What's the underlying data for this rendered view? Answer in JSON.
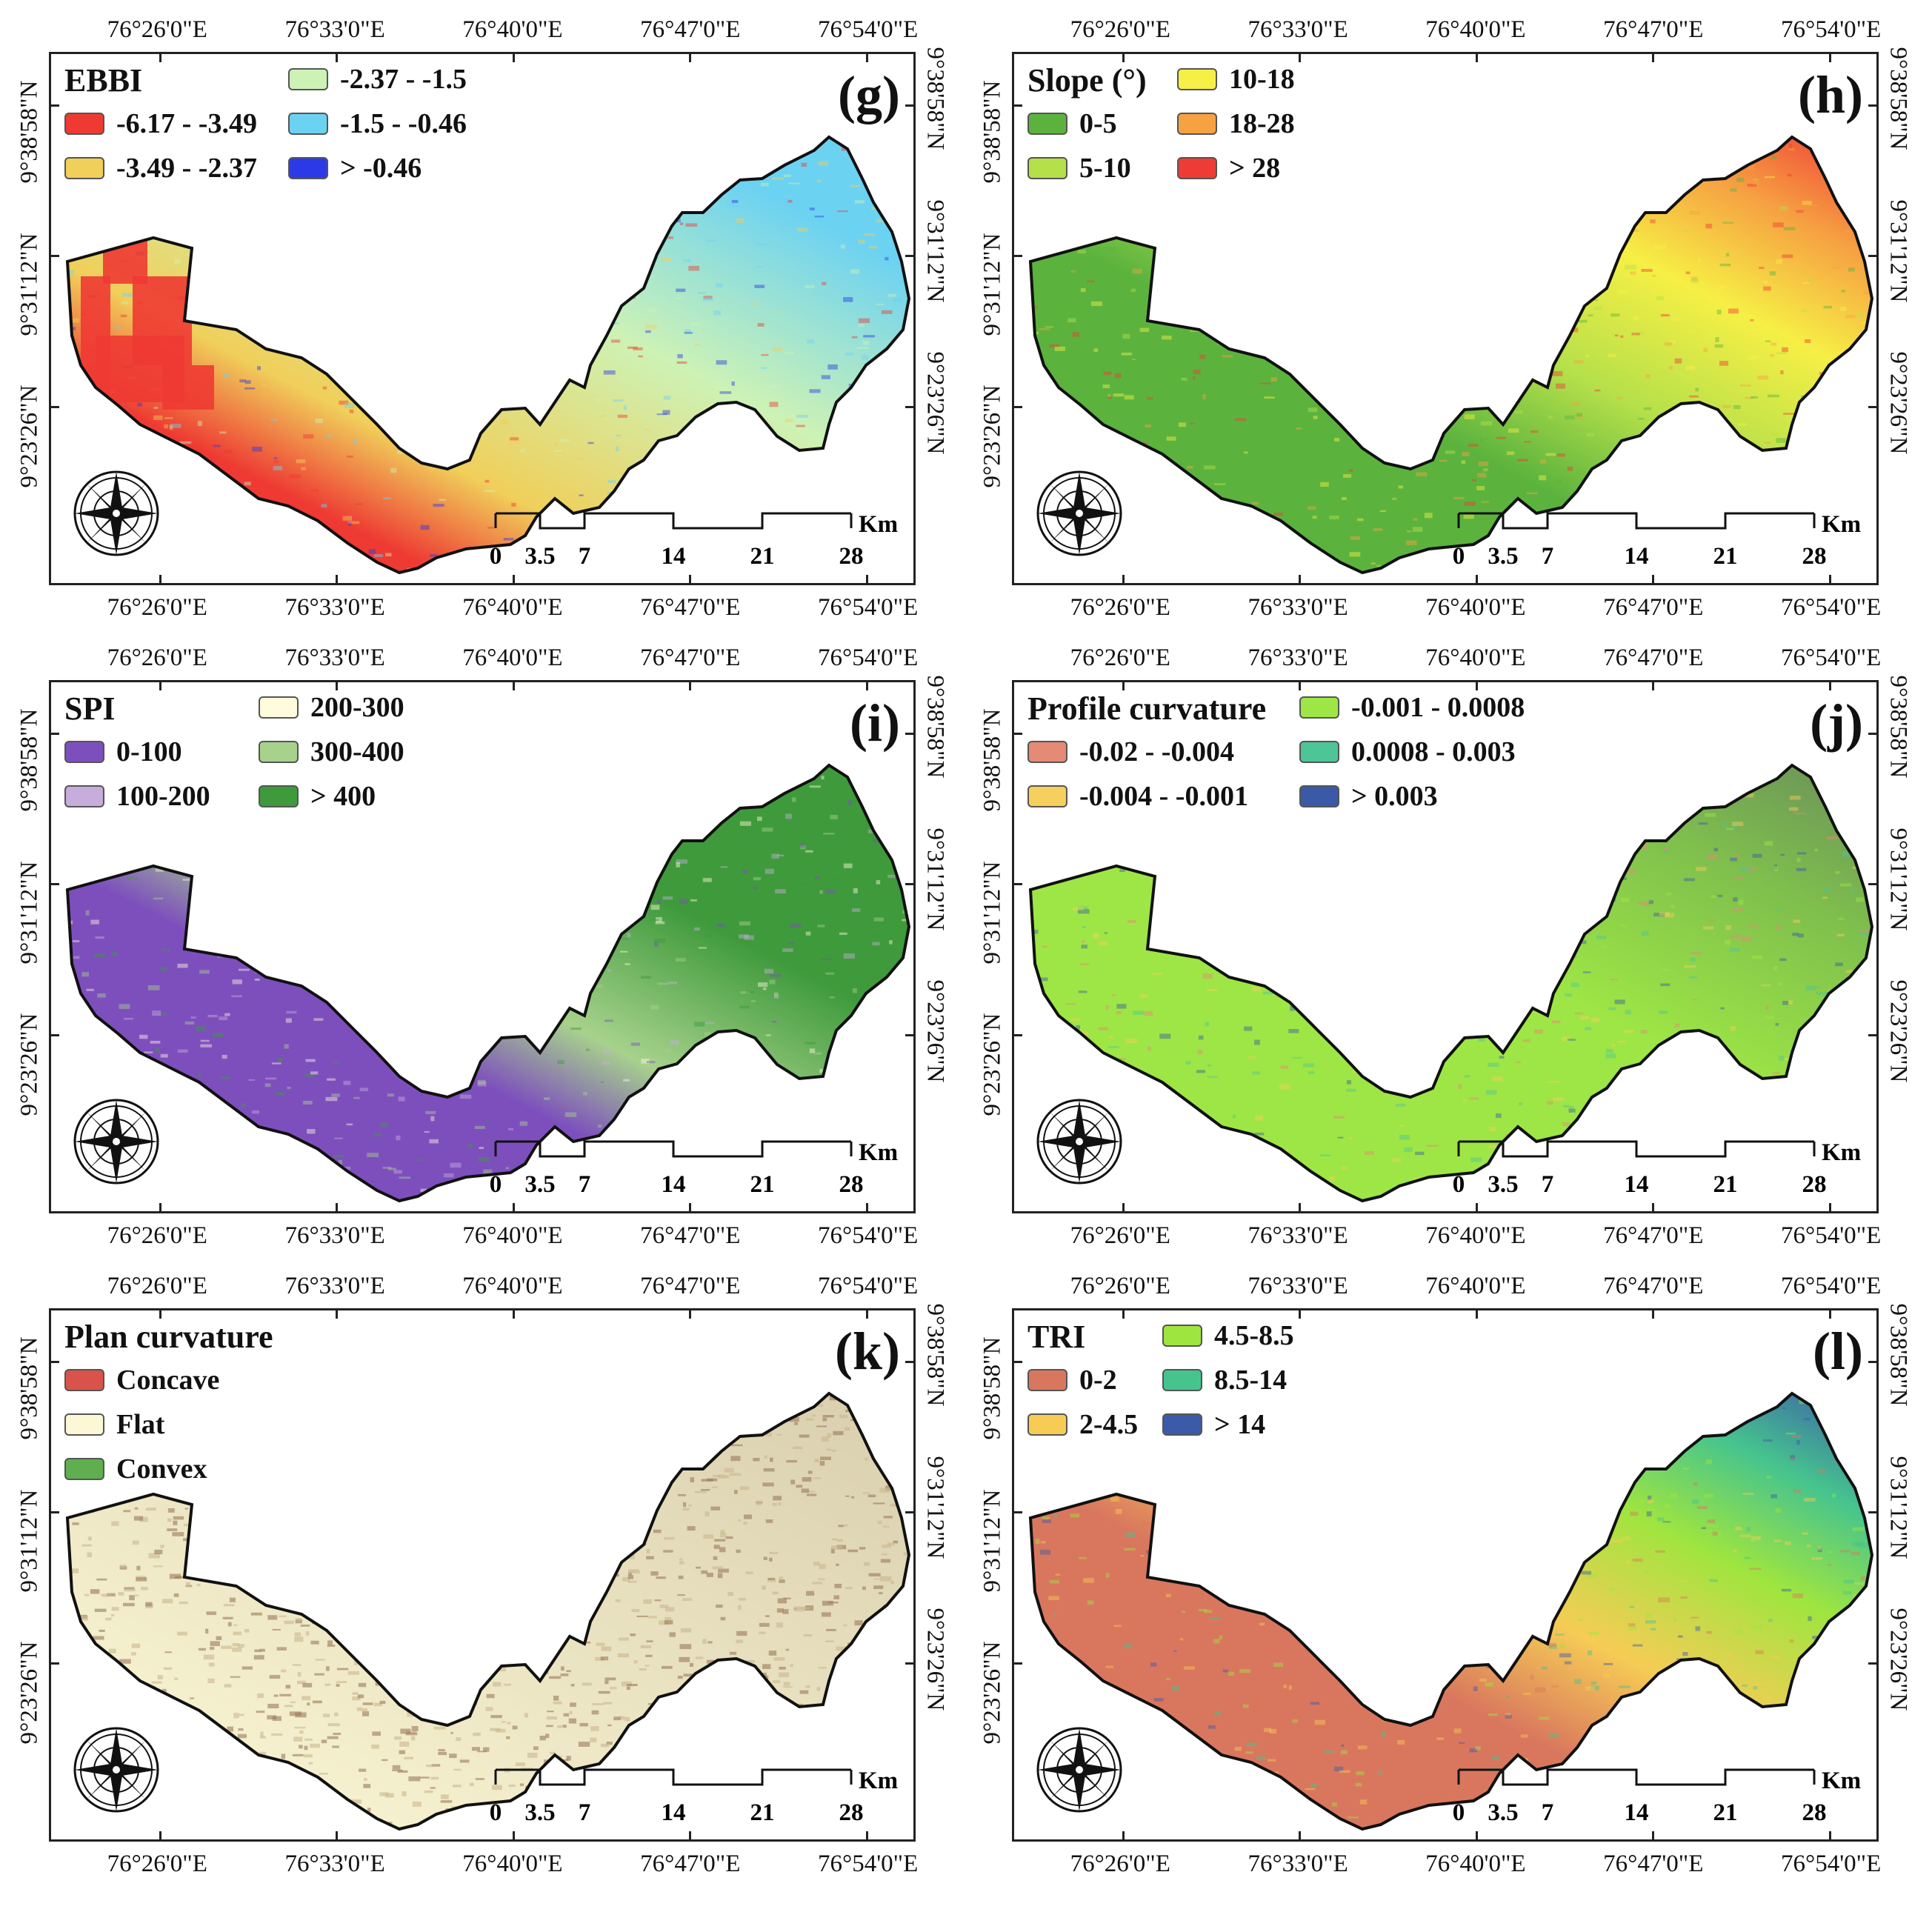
{
  "lon_ticks": [
    "76°26'0\"E",
    "76°33'0\"E",
    "76°40'0\"E",
    "76°47'0\"E",
    "76°54'0\"E"
  ],
  "lat_ticks": [
    "9°38'58\"N",
    "9°31'12\"N",
    "9°23'26\"N"
  ],
  "scalebar": {
    "unit": "Km",
    "labels": [
      "0",
      "3.5",
      "7",
      "14",
      "21",
      "28"
    ]
  },
  "panels": [
    {
      "id": "g",
      "label": "(g)",
      "legend_title": "EBBI",
      "texture": "ebbi",
      "classes": [
        {
          "label": "-6.17 - -3.49",
          "color": "#ee3a33"
        },
        {
          "label": "-3.49 - -2.37",
          "color": "#f0cf5a"
        },
        {
          "label": "-2.37 - -1.5",
          "color": "#cdf2b5"
        },
        {
          "label": "-1.5 - -0.46",
          "color": "#6cd2f2"
        },
        {
          "label": "> -0.46",
          "color": "#2b3ae6"
        }
      ]
    },
    {
      "id": "h",
      "label": "(h)",
      "legend_title": "Slope (°)",
      "texture": "gradient",
      "classes": [
        {
          "label": "0-5",
          "color": "#5bb33e"
        },
        {
          "label": "5-10",
          "color": "#b5e04a"
        },
        {
          "label": "10-18",
          "color": "#f6ef45"
        },
        {
          "label": "18-28",
          "color": "#f6a142"
        },
        {
          "label": "> 28",
          "color": "#ef3b35"
        }
      ]
    },
    {
      "id": "i",
      "label": "(i)",
      "legend_title": "SPI",
      "texture": "gradient",
      "classes": [
        {
          "label": "0-100",
          "color": "#7d4fbd"
        },
        {
          "label": "100-200",
          "color": "#c7addb"
        },
        {
          "label": "200-300",
          "color": "#fffbdc"
        },
        {
          "label": "300-400",
          "color": "#a7d28c"
        },
        {
          "label": "> 400",
          "color": "#3f9a3c"
        }
      ]
    },
    {
      "id": "j",
      "label": "(j)",
      "legend_title": "Profile curvature",
      "texture": "gradient",
      "classes": [
        {
          "label": "-0.02 - -0.004",
          "color": "#e48a76"
        },
        {
          "label": "-0.004 - -0.001",
          "color": "#f7cf5c"
        },
        {
          "label": "-0.001 - 0.0008",
          "color": "#9ee645"
        },
        {
          "label": "0.0008 - 0.003",
          "color": "#4dc596"
        },
        {
          "label": "> 0.003",
          "color": "#3a5aa8"
        }
      ]
    },
    {
      "id": "k",
      "label": "(k)",
      "legend_title": "Plan curvature",
      "texture": "speckle",
      "classes": [
        {
          "label": "Concave",
          "color": "#d9534a"
        },
        {
          "label": "Flat",
          "color": "#fcf8d6"
        },
        {
          "label": "Convex",
          "color": "#5fae4f"
        }
      ]
    },
    {
      "id": "l",
      "label": "(l)",
      "legend_title": "TRI",
      "texture": "gradient",
      "classes": [
        {
          "label": "0-2",
          "color": "#d9775e"
        },
        {
          "label": "2-4.5",
          "color": "#f6cc55"
        },
        {
          "label": "4.5-8.5",
          "color": "#9fe53f"
        },
        {
          "label": "8.5-14",
          "color": "#46c48e"
        },
        {
          "label": "> 14",
          "color": "#3b5ba8"
        }
      ]
    }
  ]
}
